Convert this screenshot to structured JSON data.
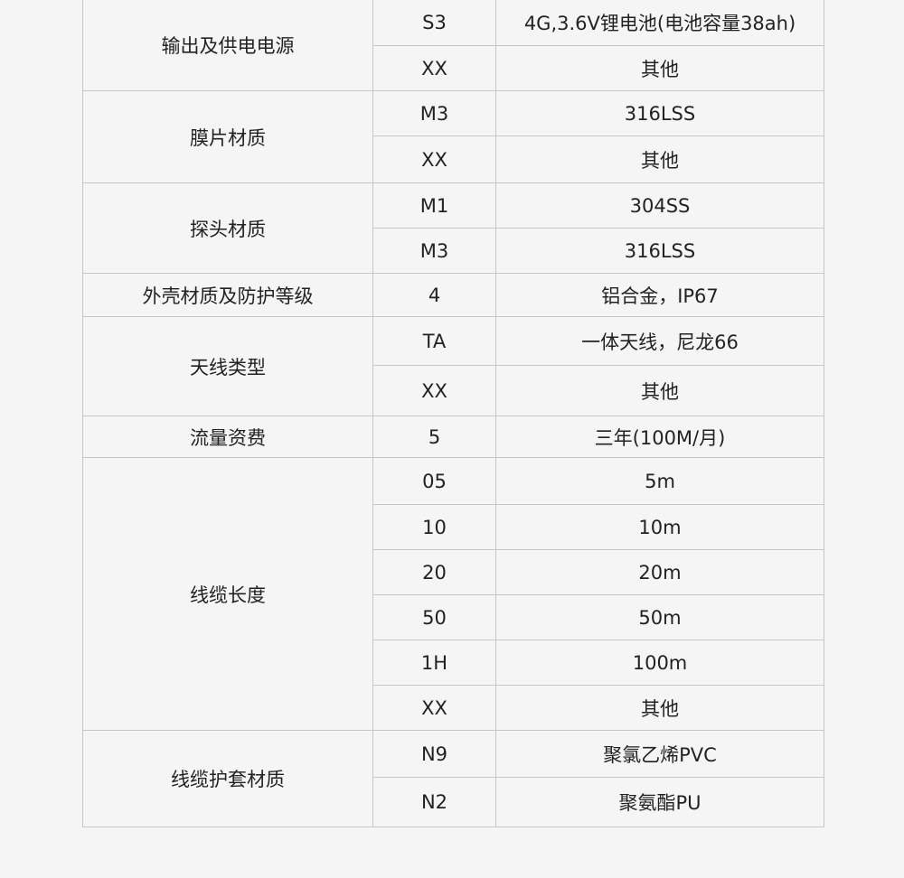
{
  "groups": [
    {
      "name": "输出及供电电源",
      "rows": [
        [
          "S3",
          "4G,3.6V锂电池(电池容量38ah)"
        ],
        [
          "XX",
          "其他"
        ]
      ]
    },
    {
      "name": "膜片材质",
      "rows": [
        [
          "M3",
          "316LSS"
        ],
        [
          "XX",
          "其他"
        ]
      ]
    },
    {
      "name": "探头材质",
      "rows": [
        [
          "M1",
          "304SS"
        ],
        [
          "M3",
          "316LSS"
        ]
      ]
    },
    {
      "name": "外壳材质及防护等级",
      "rows": [
        [
          "4",
          "铝合金，IP67"
        ]
      ]
    },
    {
      "name": "天线类型",
      "rows": [
        [
          "TA",
          "一体天线，尼龙66"
        ],
        [
          "XX",
          "其他"
        ]
      ]
    },
    {
      "name": "流量资费",
      "rows": [
        [
          "5",
          "三年(100M/月)"
        ]
      ]
    },
    {
      "name": "线缆长度",
      "rows": [
        [
          "05",
          "5m"
        ],
        [
          "10",
          "10m"
        ],
        [
          "20",
          "20m"
        ],
        [
          "50",
          "50m"
        ],
        [
          "1H",
          "100m"
        ],
        [
          "XX",
          "其他"
        ]
      ]
    },
    {
      "name": "线缆护套材质",
      "rows": [
        [
          "N9",
          "聚氯乙烯PVC"
        ],
        [
          "N2",
          "聚氨酯PU"
        ]
      ]
    }
  ]
}
